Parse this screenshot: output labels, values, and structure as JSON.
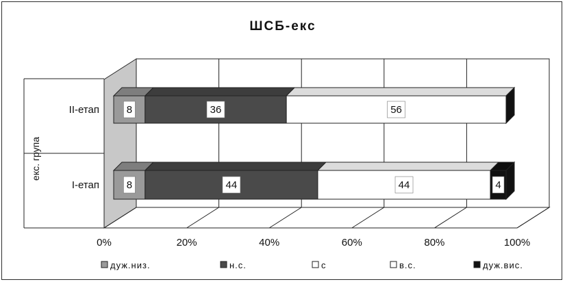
{
  "chart_data": {
    "type": "bar",
    "orientation": "horizontal",
    "stacked": "percent",
    "title": "ШСБ-екс",
    "ylabel": "екс. група",
    "xlabel": "",
    "categories": [
      "II-етап",
      "I-етап"
    ],
    "xlim": [
      0,
      100
    ],
    "x_ticks": [
      "0%",
      "20%",
      "40%",
      "60%",
      "80%",
      "100%"
    ],
    "grid": true,
    "legend_position": "bottom",
    "series": [
      {
        "name": "дуж.низ.",
        "values": [
          8,
          8
        ],
        "color": "#9a9a9a"
      },
      {
        "name": "н.с.",
        "values": [
          36,
          44
        ],
        "color": "#4a4a4a"
      },
      {
        "name": "с",
        "values": [
          0,
          0
        ],
        "color": "#ffffff"
      },
      {
        "name": "в.с.",
        "values": [
          56,
          44
        ],
        "color": "#ffffff"
      },
      {
        "name": "дуж.вис.",
        "values": [
          0,
          4
        ],
        "color": "#111111"
      }
    ]
  }
}
